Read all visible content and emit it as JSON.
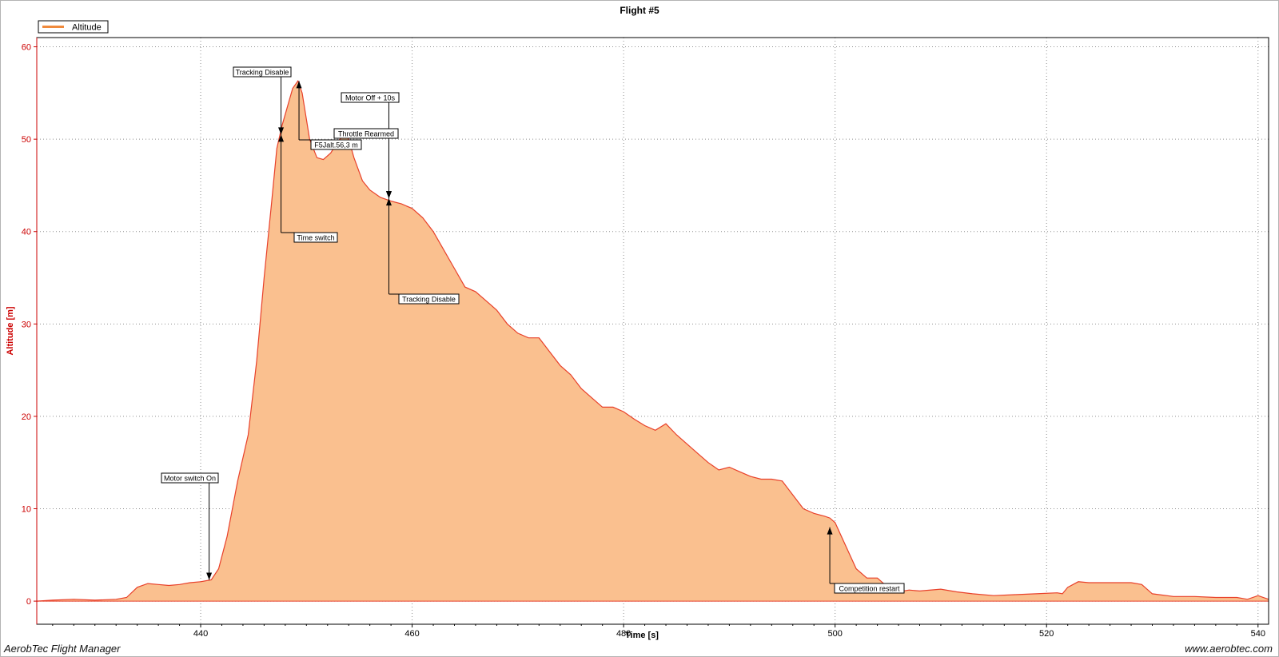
{
  "footer": {
    "app_name": "AerobTec Flight Manager",
    "website": "www.aerobtec.com"
  },
  "chart_data": {
    "type": "area",
    "title": "Flight #5",
    "xlabel": "Time [s]",
    "ylabel": "Altitude [m]",
    "xlim": [
      424.5,
      541
    ],
    "ylim": [
      -2.5,
      61
    ],
    "xticks": [
      440,
      460,
      480,
      500,
      520,
      540
    ],
    "yticks": [
      0,
      10,
      20,
      30,
      40,
      50,
      60
    ],
    "grid": true,
    "legend_position": "top-left",
    "colors": {
      "fill": "#fac08f",
      "line": "#e8402a",
      "axis_label": "#cc0000",
      "annotation": "#000000"
    },
    "series": [
      {
        "name": "Altitude",
        "x": [
          424.5,
          426,
          428,
          430,
          432,
          433,
          434,
          435,
          436,
          437,
          438,
          439,
          440,
          441,
          441.7,
          442.5,
          443.5,
          444.5,
          445.3,
          446,
          446.7,
          447.2,
          447.7,
          448.2,
          448.7,
          449.2,
          449.6,
          450.3,
          451,
          451.6,
          452.3,
          453,
          453.6,
          454,
          454.5,
          455.3,
          456,
          457,
          458,
          459,
          460,
          461,
          462,
          463,
          464,
          465,
          466,
          467,
          468,
          469,
          470,
          471,
          472,
          473,
          474,
          475,
          476,
          477,
          478,
          479,
          480,
          481,
          482,
          483,
          484,
          485,
          486,
          487,
          488,
          489,
          490,
          491,
          492,
          493,
          494,
          495,
          496,
          497,
          498,
          499,
          499.5,
          500,
          501,
          502,
          503,
          504,
          505,
          506,
          507,
          508,
          510,
          511.5,
          513,
          515,
          517,
          519,
          521,
          521.5,
          522,
          523,
          524,
          526,
          528,
          529,
          530,
          532,
          534,
          536,
          538,
          539,
          540,
          541
        ],
        "values": [
          0,
          0.1,
          0.2,
          0.1,
          0.2,
          0.4,
          1.5,
          1.9,
          1.8,
          1.7,
          1.8,
          2.0,
          2.1,
          2.3,
          3.5,
          7,
          13,
          18,
          26,
          35,
          43,
          49,
          51.5,
          53.5,
          55.5,
          56.3,
          55,
          50,
          48,
          47.8,
          48.5,
          49.8,
          50.5,
          50,
          48,
          45.5,
          44.5,
          43.7,
          43.3,
          43,
          42.5,
          41.5,
          40,
          38,
          36,
          34,
          33.5,
          32.5,
          31.5,
          30,
          29,
          28.5,
          28.5,
          27,
          25.5,
          24.5,
          23,
          22,
          21,
          21,
          20.5,
          19.7,
          19,
          18.5,
          19.2,
          18,
          17,
          16,
          15,
          14.2,
          14.5,
          14,
          13.5,
          13.2,
          13.2,
          13,
          11.5,
          10,
          9.5,
          9.2,
          9,
          8.5,
          6,
          3.5,
          2.5,
          2.5,
          1.5,
          1.0,
          1.2,
          1.1,
          1.3,
          1.0,
          0.8,
          0.6,
          0.7,
          0.8,
          0.9,
          0.8,
          1.5,
          2.1,
          2.0,
          2.0,
          2.0,
          1.8,
          0.8,
          0.5,
          0.5,
          0.4,
          0.4,
          0.2,
          0.6,
          0.2
        ]
      }
    ],
    "annotations": [
      {
        "text": "Motor switch On",
        "x": 440.8,
        "y": 2.3,
        "direction": "down",
        "label_side": "top"
      },
      {
        "text": "Tracking Disable",
        "x": 447.6,
        "y": 50.5,
        "direction": "down",
        "label_side": "top"
      },
      {
        "text": "Time switch",
        "x": 447.6,
        "y": 50.5,
        "direction": "up",
        "label_side": "bottom"
      },
      {
        "text": "F5Jalt.56,3 m",
        "x": 449.3,
        "y": 56.3,
        "direction": "up",
        "label_side": "bottom"
      },
      {
        "text": "Motor Off + 10s",
        "x": 457.8,
        "y": 43.6,
        "direction": "down",
        "label_side": "top"
      },
      {
        "text": "Throttle Rearmed",
        "x": 457.8,
        "y": 43.6,
        "direction": "down",
        "label_side": "top"
      },
      {
        "text": "Tracking Disable",
        "x": 457.8,
        "y": 43.6,
        "direction": "up",
        "label_side": "bottom"
      },
      {
        "text": "Competition restart",
        "x": 499.5,
        "y": 8,
        "direction": "up",
        "label_side": "bottom"
      }
    ]
  }
}
